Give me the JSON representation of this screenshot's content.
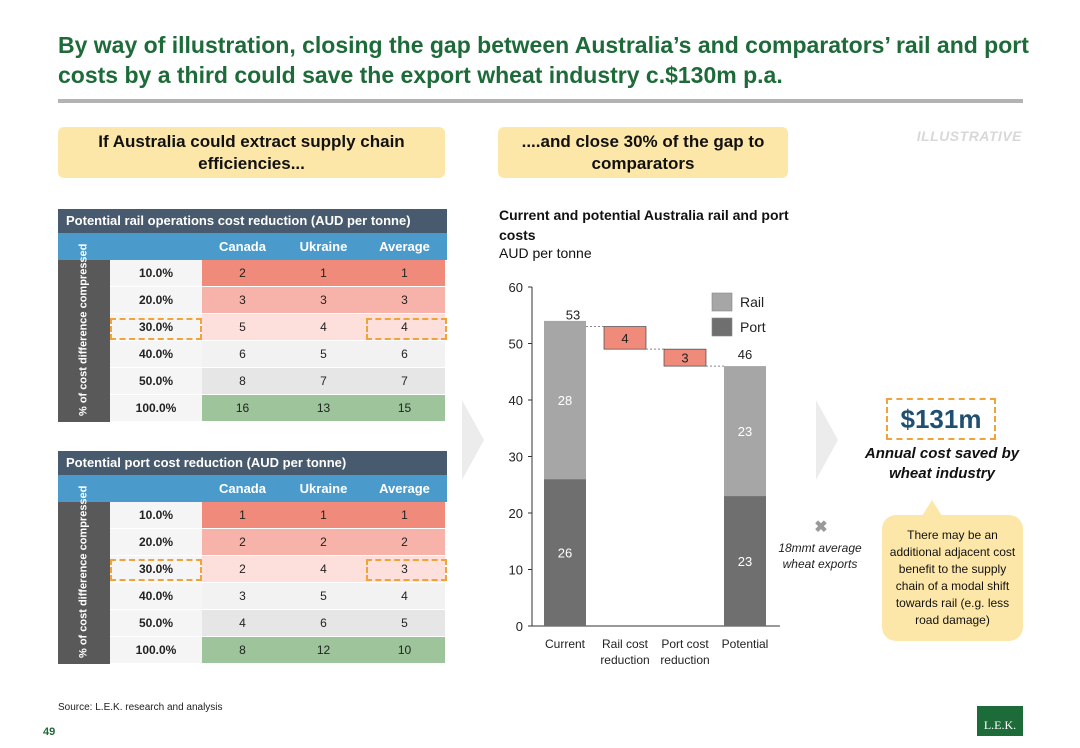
{
  "headline": "By way of illustration, closing the gap between Australia’s and comparators’ rail and port costs by a third could save the export wheat industry c.$130m p.a.",
  "callout_left": "If Australia could extract supply chain efficiencies...",
  "callout_mid": "....and close 30% of the gap to comparators",
  "illustrative": "ILLUSTRATIVE",
  "rail_table": {
    "title": "Potential rail operations cost reduction (AUD per tonne)",
    "columns": [
      "Canada",
      "Ukraine",
      "Average"
    ],
    "side_label": "% of cost difference compressed",
    "rows": [
      {
        "label": "10.0%",
        "values": [
          "2",
          "1",
          "1"
        ]
      },
      {
        "label": "20.0%",
        "values": [
          "3",
          "3",
          "3"
        ]
      },
      {
        "label": "30.0%",
        "values": [
          "5",
          "4",
          "4"
        ]
      },
      {
        "label": "40.0%",
        "values": [
          "6",
          "5",
          "6"
        ]
      },
      {
        "label": "50.0%",
        "values": [
          "8",
          "7",
          "7"
        ]
      },
      {
        "label": "100.0%",
        "values": [
          "16",
          "13",
          "15"
        ]
      }
    ]
  },
  "port_table": {
    "title": "Potential port cost reduction (AUD per tonne)",
    "columns": [
      "Canada",
      "Ukraine",
      "Average"
    ],
    "side_label": "% of cost difference compressed",
    "rows": [
      {
        "label": "10.0%",
        "values": [
          "1",
          "1",
          "1"
        ]
      },
      {
        "label": "20.0%",
        "values": [
          "2",
          "2",
          "2"
        ]
      },
      {
        "label": "30.0%",
        "values": [
          "2",
          "4",
          "3"
        ]
      },
      {
        "label": "40.0%",
        "values": [
          "3",
          "5",
          "4"
        ]
      },
      {
        "label": "50.0%",
        "values": [
          "4",
          "6",
          "5"
        ]
      },
      {
        "label": "100.0%",
        "values": [
          "8",
          "12",
          "10"
        ]
      }
    ]
  },
  "row_colors": [
    "#f08a7a",
    "#f7b3aa",
    "#fde0dc",
    "#f2f2f2",
    "#e6e6e6",
    "#9dc49a"
  ],
  "chart_data": {
    "type": "bar",
    "subtype": "waterfall",
    "title": "Current and potential Australia rail and port costs",
    "ylabel": "AUD per tonne",
    "ylim": [
      0,
      60
    ],
    "yticks": [
      0,
      10,
      20,
      30,
      40,
      50,
      60
    ],
    "categories": [
      "Current",
      "Rail cost reduction",
      "Port cost reduction",
      "Potential"
    ],
    "category_lines": [
      [
        "Current"
      ],
      [
        "Rail cost",
        "reduction"
      ],
      [
        "Port cost",
        "reduction"
      ],
      [
        "Potential"
      ]
    ],
    "series": [
      {
        "name": "Port",
        "color": "#6f6f6f",
        "values": [
          26,
          null,
          null,
          23
        ]
      },
      {
        "name": "Rail",
        "color": "#a6a6a6",
        "values": [
          28,
          null,
          null,
          23
        ]
      }
    ],
    "totals": [
      53,
      null,
      null,
      46
    ],
    "reductions": [
      {
        "category": "Rail cost reduction",
        "from": 53,
        "to": 49,
        "label": "4",
        "color": "#f08a7a"
      },
      {
        "category": "Port cost reduction",
        "from": 49,
        "to": 46,
        "label": "3",
        "color": "#f08a7a"
      }
    ],
    "legend": {
      "position": "top-right",
      "items": [
        "Rail",
        "Port"
      ]
    }
  },
  "multiplier_note": "18mmt average wheat exports",
  "saving_value": "$131m",
  "saving_caption": "Annual cost saved by wheat industry",
  "bubble_text": "There may be an additional adjacent cost benefit to the supply chain of a modal shift towards rail (e.g. less road damage)",
  "source": "Source: L.E.K. research and analysis",
  "page_number": "49",
  "logo_text": "L.E.K."
}
